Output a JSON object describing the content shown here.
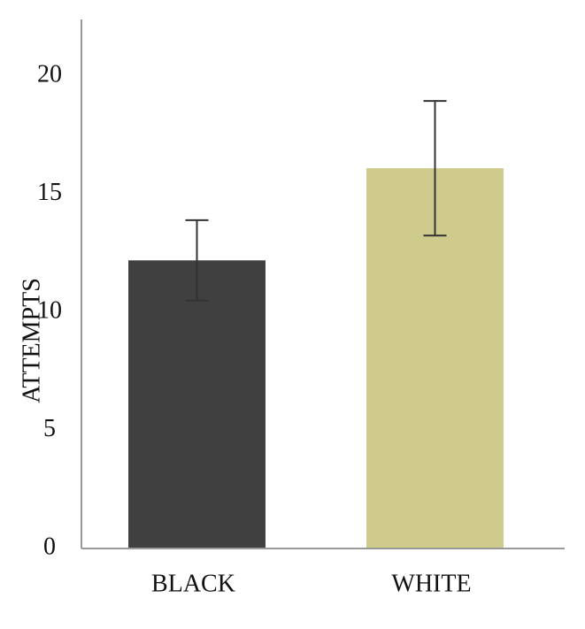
{
  "chart_data": {
    "type": "bar",
    "y_label": "ATTEMPTS",
    "categories": [
      "BLACK",
      "WHITE"
    ],
    "values": [
      12.2,
      16.1
    ],
    "errors": [
      1.7,
      2.85
    ],
    "colors": [
      "#404040",
      "#cfcb8d"
    ],
    "ylim": [
      0,
      22.4
    ],
    "yticks": [
      0,
      5,
      10,
      15,
      20
    ]
  }
}
